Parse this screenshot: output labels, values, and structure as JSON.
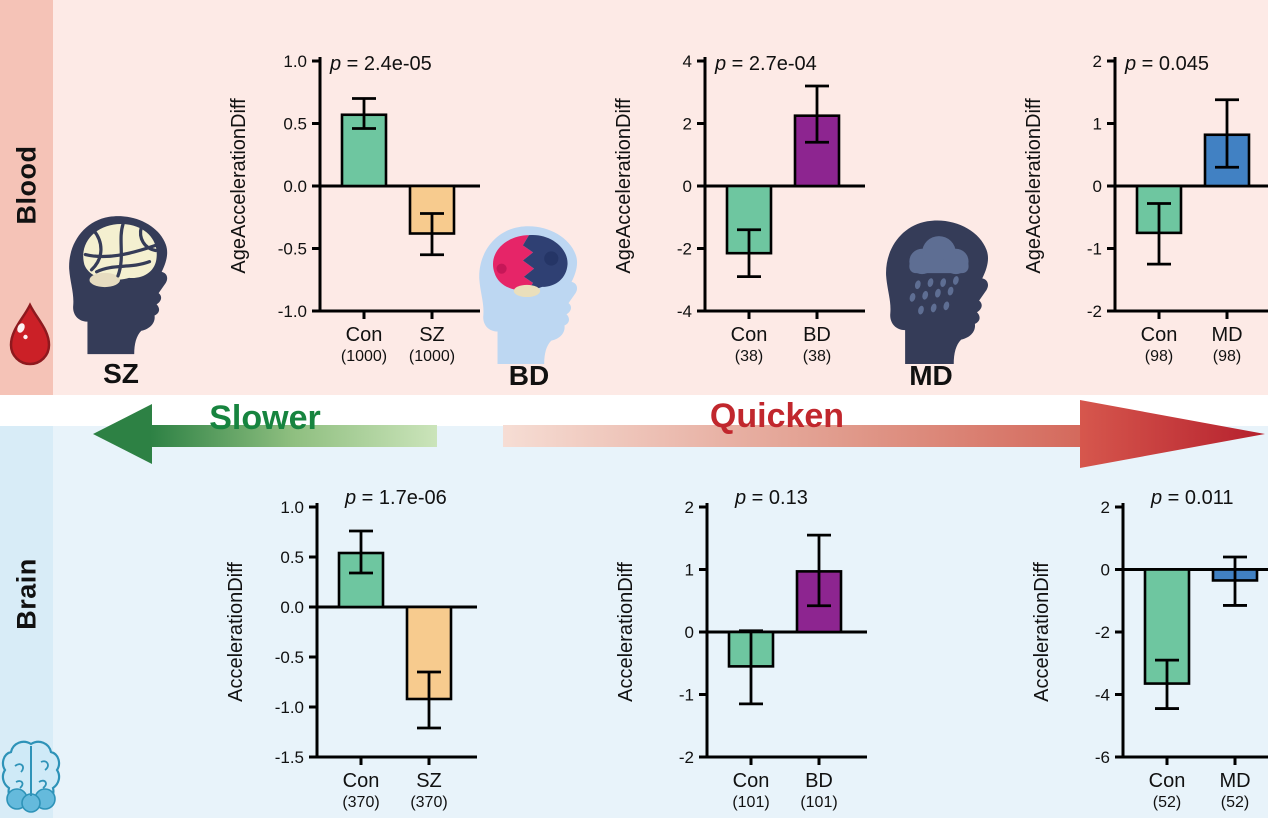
{
  "sections": {
    "blood": {
      "label": "Blood",
      "bg": "#fdeae6",
      "strip": "#f5c3b7"
    },
    "brain": {
      "label": "Brain",
      "bg": "#e8f3fa",
      "strip": "#d8ecf7"
    }
  },
  "arrows": {
    "slower": {
      "label": "Slower",
      "text_color": "#17843f",
      "dark": "#2d8144",
      "light": "#cbe4ba",
      "direction": "left"
    },
    "quicken": {
      "label": "Quicken",
      "text_color": "#c1272d",
      "dark": "#b5202d",
      "light": "#f6ddd4",
      "direction": "right"
    }
  },
  "disorders": [
    {
      "id": "sz",
      "label": "SZ",
      "icon": "head-with-brain-icon"
    },
    {
      "id": "bd",
      "label": "BD",
      "icon": "head-with-split-brain-icon"
    },
    {
      "id": "md",
      "label": "MD",
      "icon": "head-with-rain-cloud-icon"
    }
  ],
  "icons": {
    "blood_drop": "blood-drop-icon",
    "brain": "brain-icon"
  },
  "palette": {
    "control_green": "#6ec6a0",
    "sz_orange": "#f7cb8e",
    "bd_purple": "#8d2590",
    "md_blue": "#4181c3",
    "head_navy": "#353c58",
    "bd_head_blue": "#bdd7f2"
  },
  "chart_data": [
    {
      "id": "blood-sz",
      "type": "bar",
      "row": "blood",
      "p_label": "p = 2.4e-05",
      "p_above": false,
      "ylabel": "AgeAccelerationDiff",
      "ylim": [
        -1.0,
        1.0
      ],
      "yticks": [
        1.0,
        0.5,
        0.0,
        -0.5,
        -1.0
      ],
      "ytick_labels": [
        "1.0",
        "0.5",
        "0.0",
        "-0.5",
        "-1.0"
      ],
      "categories": [
        "Con",
        "SZ"
      ],
      "counts": [
        "(1000)",
        "(1000)"
      ],
      "values": [
        0.57,
        -0.38
      ],
      "errors_low": [
        0.46,
        -0.55
      ],
      "errors_high": [
        0.7,
        -0.22
      ],
      "colors": [
        "#6ec6a0",
        "#f7cb8e"
      ]
    },
    {
      "id": "blood-bd",
      "type": "bar",
      "row": "blood",
      "p_label": "p = 2.7e-04",
      "p_above": false,
      "ylabel": "AgeAccelerationDiff",
      "ylim": [
        -4,
        4
      ],
      "yticks": [
        4,
        2,
        0,
        -2,
        -4
      ],
      "ytick_labels": [
        "4",
        "2",
        "0",
        "-2",
        "-4"
      ],
      "categories": [
        "Con",
        "BD"
      ],
      "counts": [
        "(38)",
        "(38)"
      ],
      "values": [
        -2.15,
        2.25
      ],
      "errors_low": [
        -2.9,
        1.4
      ],
      "errors_high": [
        -1.4,
        3.2
      ],
      "colors": [
        "#6ec6a0",
        "#8d2590"
      ]
    },
    {
      "id": "blood-md",
      "type": "bar",
      "row": "blood",
      "p_label": "p = 0.045",
      "p_above": false,
      "ylabel": "AgeAccelerationDiff",
      "ylim": [
        -2,
        2
      ],
      "yticks": [
        2,
        1,
        0,
        -1,
        -2
      ],
      "ytick_labels": [
        "2",
        "1",
        "0",
        "-1",
        "-2"
      ],
      "categories": [
        "Con",
        "MD"
      ],
      "counts": [
        "(98)",
        "(98)"
      ],
      "values": [
        -0.75,
        0.82
      ],
      "errors_low": [
        -1.25,
        0.3
      ],
      "errors_high": [
        -0.28,
        1.38
      ],
      "colors": [
        "#6ec6a0",
        "#4181c3"
      ]
    },
    {
      "id": "brain-sz",
      "type": "bar",
      "row": "brain",
      "p_label": "p = 1.7e-06",
      "p_above": true,
      "ylabel": "AccelerationDiff",
      "ylim": [
        -1.5,
        1.0
      ],
      "yticks": [
        1.0,
        0.5,
        0.0,
        -0.5,
        -1.0,
        -1.5
      ],
      "ytick_labels": [
        "1.0",
        "0.5",
        "0.0",
        "-0.5",
        "-1.0",
        "-1.5"
      ],
      "categories": [
        "Con",
        "SZ"
      ],
      "counts": [
        "(370)",
        "(370)"
      ],
      "values": [
        0.54,
        -0.92
      ],
      "errors_low": [
        0.34,
        -1.21
      ],
      "errors_high": [
        0.76,
        -0.65
      ],
      "colors": [
        "#6ec6a0",
        "#f7cb8e"
      ]
    },
    {
      "id": "brain-bd",
      "type": "bar",
      "row": "brain",
      "p_label": "p = 0.13",
      "p_above": true,
      "ylabel": "AccelerationDiff",
      "ylim": [
        -2,
        2
      ],
      "yticks": [
        2,
        1,
        0,
        -1,
        -2
      ],
      "ytick_labels": [
        "2",
        "1",
        "0",
        "-1",
        "-2"
      ],
      "categories": [
        "Con",
        "BD"
      ],
      "counts": [
        "(101)",
        "(101)"
      ],
      "values": [
        -0.55,
        0.97
      ],
      "errors_low": [
        -1.15,
        0.42
      ],
      "errors_high": [
        0.02,
        1.55
      ],
      "colors": [
        "#6ec6a0",
        "#8d2590"
      ]
    },
    {
      "id": "brain-md",
      "type": "bar",
      "row": "brain",
      "p_label": "p = 0.011",
      "p_above": true,
      "ylabel": "AccelerationDiff",
      "ylim": [
        -6,
        2
      ],
      "yticks": [
        2,
        0,
        -2,
        -4,
        -6
      ],
      "ytick_labels": [
        "2",
        "0",
        "-2",
        "-4",
        "-6"
      ],
      "categories": [
        "Con",
        "MD"
      ],
      "counts": [
        "(52)",
        "(52)"
      ],
      "values": [
        -3.65,
        -0.35
      ],
      "errors_low": [
        -4.45,
        -1.15
      ],
      "errors_high": [
        -2.9,
        0.4
      ],
      "colors": [
        "#6ec6a0",
        "#4181c3"
      ]
    }
  ]
}
